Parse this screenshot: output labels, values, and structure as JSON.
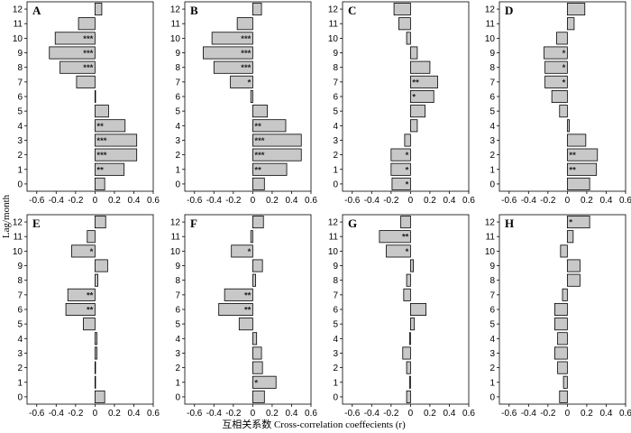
{
  "chart_data": {
    "type": "bar",
    "orientation": "horizontal",
    "xlabel": "互相关系数 Cross-correlation coeffecients (r)",
    "ylabel": "Lag/month",
    "xlim": [
      -0.7,
      0.6
    ],
    "xticks": [
      -0.6,
      -0.4,
      -0.2,
      0,
      0.2,
      0.4,
      0.6
    ],
    "xtick_labels": [
      "-0.6",
      "-0.4",
      "-0.2",
      "0",
      "0.2",
      "0.4",
      "0.6"
    ],
    "lags": [
      0,
      1,
      2,
      3,
      4,
      5,
      6,
      7,
      8,
      9,
      10,
      11,
      12
    ],
    "lag_labels": [
      "0",
      "1",
      "2",
      "3",
      "4",
      "5",
      "6",
      "7",
      "8",
      "9",
      "10",
      "11",
      "12"
    ],
    "bar_color": "#c8c8c8",
    "panels": [
      {
        "label": "A",
        "values": [
          0.1,
          0.3,
          0.43,
          0.43,
          0.31,
          0.14,
          0.0,
          -0.19,
          -0.36,
          -0.47,
          -0.41,
          -0.17,
          0.07
        ],
        "significance": [
          "",
          "**",
          "***",
          "***",
          "**",
          "",
          "",
          "",
          "***",
          "***",
          "***",
          "",
          ""
        ]
      },
      {
        "label": "B",
        "values": [
          0.12,
          0.35,
          0.5,
          0.5,
          0.34,
          0.15,
          -0.02,
          -0.23,
          -0.4,
          -0.51,
          -0.42,
          -0.16,
          0.09
        ],
        "significance": [
          "",
          "**",
          "***",
          "***",
          "**",
          "",
          "",
          "*",
          "***",
          "***",
          "***",
          "",
          ""
        ]
      },
      {
        "label": "C",
        "values": [
          -0.19,
          -0.2,
          -0.2,
          -0.06,
          0.07,
          0.15,
          0.24,
          0.28,
          0.2,
          0.07,
          -0.04,
          -0.12,
          -0.17
        ],
        "significance": [
          "*",
          "*",
          "*",
          "",
          "",
          "",
          "*",
          "**",
          "",
          "",
          "",
          "",
          ""
        ]
      },
      {
        "label": "D",
        "values": [
          0.23,
          0.3,
          0.31,
          0.19,
          0.02,
          -0.08,
          -0.16,
          -0.23,
          -0.23,
          -0.24,
          -0.11,
          0.07,
          0.18
        ],
        "significance": [
          "",
          "**",
          "**",
          "",
          "",
          "",
          "",
          "*",
          "*",
          "*",
          "",
          "",
          ""
        ]
      },
      {
        "label": "E",
        "values": [
          0.1,
          0.0,
          0.0,
          0.02,
          0.02,
          -0.12,
          -0.3,
          -0.28,
          0.03,
          0.13,
          -0.24,
          -0.08,
          0.11
        ],
        "significance": [
          "",
          "",
          "",
          "",
          "",
          "",
          "**",
          "**",
          "",
          "",
          "*",
          "",
          ""
        ]
      },
      {
        "label": "F",
        "values": [
          0.12,
          0.24,
          0.1,
          0.09,
          0.04,
          -0.14,
          -0.35,
          -0.29,
          0.03,
          0.1,
          -0.22,
          -0.02,
          0.11
        ],
        "significance": [
          "",
          "*",
          "",
          "",
          "",
          "",
          "**",
          "**",
          "",
          "",
          "*",
          "",
          ""
        ]
      },
      {
        "label": "G",
        "values": [
          -0.04,
          -0.01,
          -0.04,
          -0.08,
          -0.01,
          0.04,
          0.16,
          -0.07,
          -0.04,
          0.03,
          -0.25,
          -0.32,
          -0.1
        ],
        "significance": [
          "",
          "",
          "",
          "",
          "",
          "",
          "",
          "",
          "",
          "",
          "*",
          "**",
          ""
        ]
      },
      {
        "label": "H",
        "values": [
          -0.08,
          -0.04,
          -0.1,
          -0.13,
          -0.1,
          -0.13,
          -0.13,
          -0.05,
          0.13,
          0.13,
          -0.07,
          0.06,
          0.23
        ],
        "significance": [
          "",
          "",
          "",
          "",
          "",
          "",
          "",
          "",
          "",
          "",
          "",
          "",
          "*"
        ]
      }
    ]
  }
}
